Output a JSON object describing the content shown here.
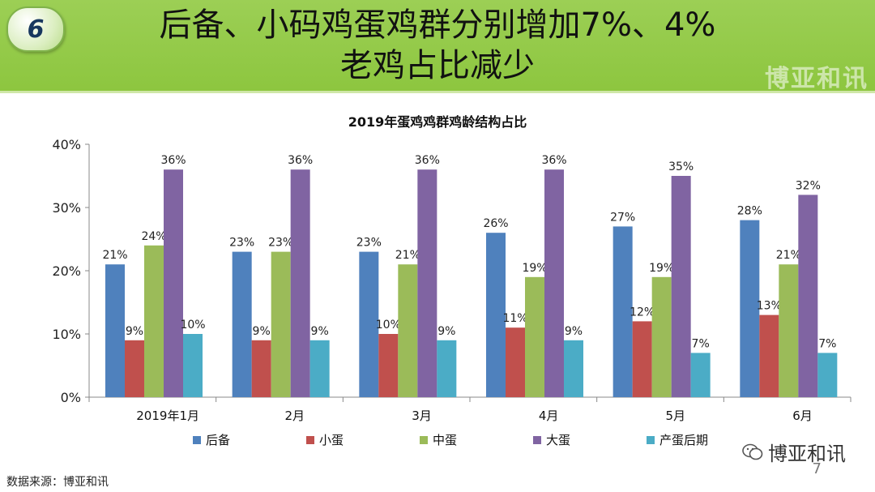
{
  "header": {
    "slide_number": "6",
    "title_line1": "后备、小码鸡蛋鸡群分别增加7%、4%",
    "title_line2": "老鸡占比减少",
    "watermark": "博亚和讯"
  },
  "footer": {
    "source": "数据来源：博亚和讯",
    "brand": "博亚和讯",
    "page_number": "7"
  },
  "colors": {
    "header_green": "#8dc63f",
    "series": [
      "#4f81bd",
      "#c0504d",
      "#9bbb59",
      "#8064a2",
      "#4bacc6"
    ]
  },
  "chart_data": {
    "type": "bar",
    "title": "2019年蛋鸡鸡群鸡龄结构占比",
    "categories": [
      "2019年1月",
      "2月",
      "3月",
      "4月",
      "5月",
      "6月"
    ],
    "series": [
      {
        "name": "后备",
        "values": [
          21,
          23,
          23,
          26,
          27,
          28
        ],
        "labels": [
          "21%",
          "23%",
          "23%",
          "26%",
          "27%",
          "28%"
        ]
      },
      {
        "name": "小蛋",
        "values": [
          9,
          9,
          10,
          11,
          12,
          13
        ],
        "labels": [
          "9%",
          "9%",
          "10%",
          "11%",
          "12%",
          "13%"
        ]
      },
      {
        "name": "中蛋",
        "values": [
          24,
          23,
          21,
          19,
          19,
          21
        ],
        "labels": [
          "24%",
          "23%",
          "21%",
          "19%",
          "19%",
          "21%"
        ]
      },
      {
        "name": "大蛋",
        "values": [
          36,
          36,
          36,
          36,
          35,
          32
        ],
        "labels": [
          "36%",
          "36%",
          "36%",
          "36%",
          "35%",
          "32%"
        ]
      },
      {
        "name": "产蛋后期",
        "values": [
          10,
          9,
          9,
          9,
          7,
          7
        ],
        "labels": [
          "10%",
          "9%",
          "9%",
          "9%",
          "7%",
          "7%"
        ]
      }
    ],
    "ylim": [
      0,
      40
    ],
    "yticks": [
      "0%",
      "10%",
      "20%",
      "30%",
      "40%"
    ],
    "grid": false,
    "legend_position": "bottom"
  }
}
